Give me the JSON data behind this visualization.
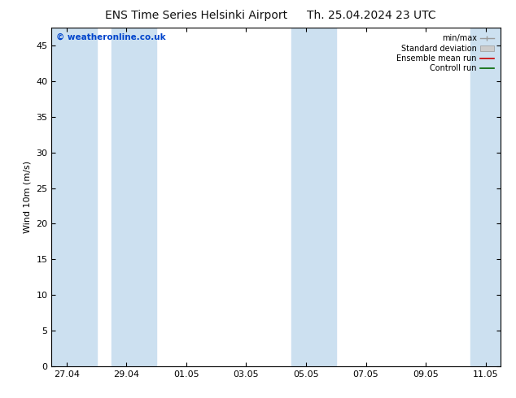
{
  "title_left": "ENS Time Series Helsinki Airport",
  "title_right": "Th. 25.04.2024 23 UTC",
  "ylabel": "Wind 10m (m/s)",
  "watermark": "© weatheronline.co.uk",
  "ylim": [
    0,
    47.5
  ],
  "yticks": [
    0,
    5,
    10,
    15,
    20,
    25,
    30,
    35,
    40,
    45
  ],
  "x_labels": [
    "27.04",
    "29.04",
    "01.05",
    "03.05",
    "05.05",
    "07.05",
    "09.05",
    "11.05"
  ],
  "x_tick_positions": [
    0,
    2,
    4,
    6,
    8,
    10,
    12,
    14
  ],
  "xlim": [
    -0.5,
    14.5
  ],
  "shaded_spans": [
    [
      -0.5,
      1.0
    ],
    [
      1.5,
      3.0
    ],
    [
      7.5,
      9.0
    ],
    [
      13.5,
      14.5
    ]
  ],
  "shaded_color": "#cce0f0",
  "background_color": "#ffffff",
  "legend_entries": [
    "min/max",
    "Standard deviation",
    "Ensemble mean run",
    "Controll run"
  ],
  "legend_line_colors": [
    "#999999",
    "#bbbbbb",
    "#cc0000",
    "#006600"
  ],
  "title_fontsize": 10,
  "tick_fontsize": 8,
  "label_fontsize": 8,
  "watermark_color": "#0044cc",
  "title_color": "#111111"
}
